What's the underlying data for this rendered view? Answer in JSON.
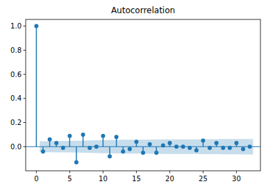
{
  "chart_data": {
    "type": "stem",
    "title": "Autocorrelation",
    "x": [
      0,
      1,
      2,
      3,
      4,
      5,
      6,
      7,
      8,
      9,
      10,
      11,
      12,
      13,
      14,
      15,
      16,
      17,
      18,
      19,
      20,
      21,
      22,
      23,
      24,
      25,
      26,
      27,
      28,
      29,
      30,
      31,
      32
    ],
    "values": [
      1.0,
      -0.04,
      0.06,
      0.03,
      -0.01,
      0.09,
      -0.13,
      0.1,
      -0.01,
      0.0,
      0.09,
      -0.08,
      0.08,
      -0.04,
      -0.02,
      0.04,
      -0.05,
      0.02,
      -0.05,
      0.01,
      0.03,
      0.0,
      0.0,
      -0.01,
      -0.03,
      0.05,
      -0.01,
      0.03,
      -0.01,
      -0.01,
      0.03,
      -0.02,
      0.0
    ],
    "confidence_band": [
      null,
      0.045,
      0.046,
      0.047,
      0.047,
      0.048,
      0.049,
      0.051,
      0.052,
      0.053,
      0.054,
      0.055,
      0.056,
      0.057,
      0.057,
      0.058,
      0.058,
      0.059,
      0.059,
      0.06,
      0.06,
      0.06,
      0.061,
      0.061,
      0.061,
      0.062,
      0.062,
      0.062,
      0.063,
      0.063,
      0.063,
      0.064,
      0.064
    ],
    "color": "#1f77b4",
    "marker": "circle",
    "grid": false,
    "xlim": [
      -1.6,
      33.6
    ],
    "xticks": [
      0,
      5,
      10,
      15,
      20,
      25,
      30
    ],
    "ylim": [
      -0.2,
      1.055
    ],
    "yticks": [
      {
        "value": 0,
        "label": "0.0"
      },
      {
        "value": 0.2,
        "label": "0.2"
      },
      {
        "value": 0.4,
        "label": "0.4"
      },
      {
        "value": 0.6,
        "label": "0.6"
      },
      {
        "value": 0.8,
        "label": "0.8"
      },
      {
        "value": 1.0,
        "label": "1.0"
      }
    ]
  }
}
